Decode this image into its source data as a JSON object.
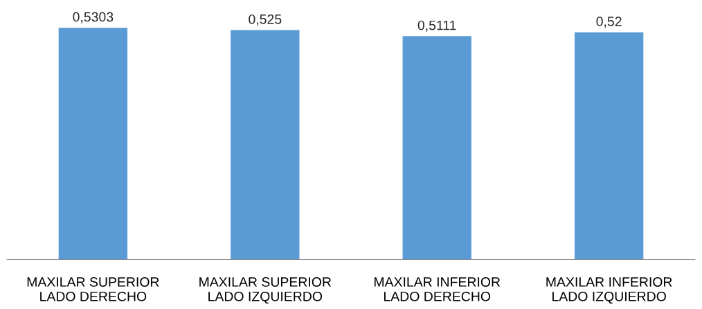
{
  "chart_data": {
    "type": "bar",
    "categories": [
      "MAXILAR SUPERIOR\nLADO DERECHO",
      "MAXILAR SUPERIOR\nLADO IZQUIERDO",
      "MAXILAR INFERIOR\nLADO DERECHO",
      "MAXILAR INFERIOR\nLADO IZQUIERDO"
    ],
    "values": [
      0.5303,
      0.525,
      0.5111,
      0.52
    ],
    "value_labels": [
      "0,5303",
      "0,525",
      "0,5111",
      "0,52"
    ],
    "color": "#5b9bd5",
    "grid": false,
    "legend": false
  }
}
